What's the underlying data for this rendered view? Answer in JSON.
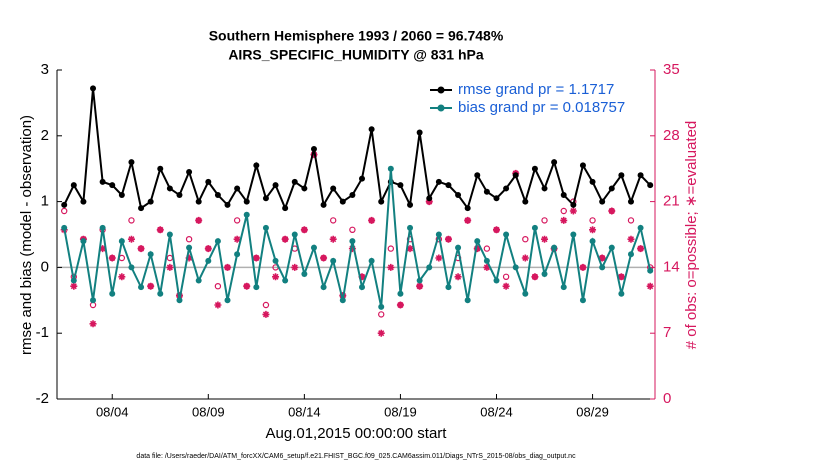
{
  "chart_data": {
    "type": "line",
    "title": "Southern Hemisphere 1993 / 2060 = 96.748%",
    "subtitle": "AIRS_SPECIFIC_HUMIDITY @ 831 hPa",
    "xlabel": "Aug.01,2015 00:00:00 start",
    "ylabel": "rmse and bias (model - observation)",
    "y2label": "# of obs: o=possible; ∗=evaluated",
    "footnote": "data file: /Users/raeder/DAI/ATM_forcXX/CAM6_setup/f.e21.FHIST_BGC.f09_025.CAM6assim.011/Diags_NTrS_2015-08/obs_diag_output.nc",
    "xlim": [
      0.125,
      31.25
    ],
    "xticks": [
      {
        "value": 3,
        "label": "08/04"
      },
      {
        "value": 8,
        "label": "08/09"
      },
      {
        "value": 13,
        "label": "08/14"
      },
      {
        "value": 18,
        "label": "08/19"
      },
      {
        "value": 23,
        "label": "08/24"
      },
      {
        "value": 28,
        "label": "08/29"
      }
    ],
    "ylim": [
      -2,
      3
    ],
    "yticks": [
      -2,
      -1,
      0,
      1,
      2,
      3
    ],
    "y2lim": [
      0,
      35
    ],
    "y2ticks": [
      0,
      7,
      14,
      21,
      28,
      35
    ],
    "legend": "upper right",
    "x": [
      0.5,
      1,
      1.5,
      2,
      2.5,
      3,
      3.5,
      4,
      4.5,
      5,
      5.5,
      6,
      6.5,
      7,
      7.5,
      8,
      8.5,
      9,
      9.5,
      10,
      10.5,
      11,
      11.5,
      12,
      12.5,
      13,
      13.5,
      14,
      14.5,
      15,
      15.5,
      16,
      16.5,
      17,
      17.5,
      18,
      18.5,
      19,
      19.5,
      20,
      20.5,
      21,
      21.5,
      22,
      22.5,
      23,
      23.5,
      24,
      24.5,
      25,
      25.5,
      26,
      26.5,
      27,
      27.5,
      28,
      28.5,
      29,
      29.5,
      30,
      30.5,
      31
    ],
    "series": [
      {
        "name": "rmse grand pr = 1.1717",
        "color": "#000000",
        "marker": "dot",
        "values": [
          0.95,
          1.25,
          1.0,
          2.72,
          1.3,
          1.25,
          1.1,
          1.6,
          0.9,
          1.0,
          1.5,
          1.2,
          1.1,
          1.45,
          1.0,
          1.3,
          1.1,
          0.95,
          1.2,
          1.0,
          1.55,
          1.05,
          1.25,
          0.9,
          1.3,
          1.2,
          1.8,
          0.95,
          1.2,
          1.0,
          1.1,
          1.35,
          2.1,
          1.0,
          1.3,
          1.25,
          0.95,
          2.05,
          1.05,
          1.3,
          1.25,
          1.1,
          0.9,
          1.4,
          1.15,
          1.05,
          1.2,
          1.4,
          1.0,
          1.5,
          1.2,
          1.6,
          1.1,
          0.95,
          1.55,
          1.3,
          1.0,
          1.2,
          1.4,
          1.0,
          1.4,
          1.25
        ]
      },
      {
        "name": "bias grand pr = 0.018757",
        "color": "#128080",
        "marker": "dot",
        "values": [
          0.6,
          -0.2,
          0.4,
          -0.5,
          0.6,
          -0.4,
          0.4,
          0.0,
          -0.3,
          0.2,
          -0.4,
          0.5,
          -0.5,
          0.3,
          -0.2,
          0.1,
          0.4,
          -0.5,
          0.2,
          0.8,
          -0.3,
          0.6,
          0.1,
          -0.2,
          0.5,
          -0.1,
          0.3,
          -0.3,
          0.1,
          -0.5,
          0.4,
          -0.3,
          0.1,
          -0.6,
          1.5,
          -0.4,
          0.6,
          -0.2,
          0.0,
          0.5,
          -0.3,
          0.3,
          -0.5,
          0.4,
          0.1,
          -0.2,
          0.5,
          0.0,
          -0.4,
          0.6,
          -0.1,
          0.3,
          -0.3,
          0.5,
          -0.5,
          0.4,
          0.0,
          0.3,
          -0.4,
          0.2,
          0.6,
          -0.05
        ]
      }
    ],
    "obs_series": [
      {
        "color": "#d6175e",
        "marker": "circle",
        "axis": "y2",
        "values": [
          20,
          13,
          17,
          10,
          18,
          15,
          15,
          19,
          16,
          12,
          18,
          15,
          11,
          17,
          19,
          16,
          12,
          14,
          19,
          12,
          15,
          10,
          14,
          17,
          16,
          18,
          26,
          15,
          19,
          11,
          18,
          13,
          19,
          9,
          16,
          10,
          17,
          12,
          21,
          17,
          17,
          15,
          19,
          16,
          16,
          18,
          13,
          24,
          17,
          13,
          19,
          16,
          20,
          21,
          14,
          19,
          15,
          20,
          13,
          19,
          16,
          14
        ]
      },
      {
        "color": "#d6175e",
        "marker": "asterisk",
        "axis": "y2",
        "values": [
          18,
          12,
          17,
          8,
          16,
          15,
          13,
          17,
          16,
          12,
          18,
          14,
          11,
          15,
          19,
          16,
          10,
          14,
          17,
          12,
          15,
          9,
          13,
          17,
          14,
          18,
          26,
          15,
          17,
          11,
          16,
          13,
          19,
          7,
          14,
          10,
          16,
          12,
          21,
          15,
          17,
          13,
          19,
          16,
          14,
          18,
          12,
          24,
          15,
          13,
          17,
          16,
          19,
          20,
          14,
          18,
          15,
          20,
          13,
          17,
          16,
          12
        ]
      }
    ],
    "zero_line_color": "#b0b0b0",
    "legend_text_color": "#1a5fd6"
  }
}
